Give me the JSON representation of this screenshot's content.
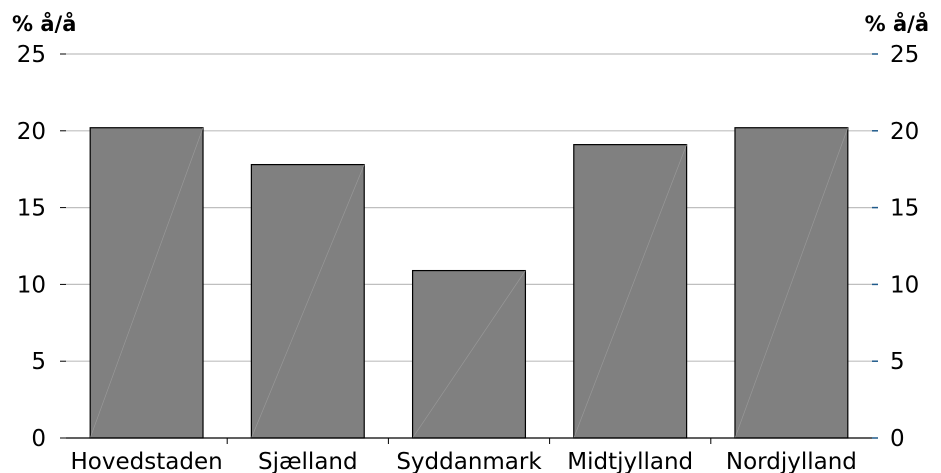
{
  "chart_data": {
    "type": "bar",
    "y_unit_left": "% å/å",
    "y_unit_right": "% å/å",
    "categories": [
      "Hovedstaden",
      "Sjælland",
      "Syddanmark",
      "Midtjylland",
      "Nordjylland"
    ],
    "values": [
      20.2,
      17.8,
      10.9,
      19.1,
      20.2
    ],
    "ylim": [
      0,
      25
    ],
    "yticks": [
      0,
      5,
      10,
      15,
      20,
      25
    ],
    "grid": true,
    "bar_color": "#808080",
    "bar_outline_color": "#000000",
    "grid_color": "#bfbfbf",
    "right_tick_color": "#1f5a8a",
    "legend": false
  }
}
